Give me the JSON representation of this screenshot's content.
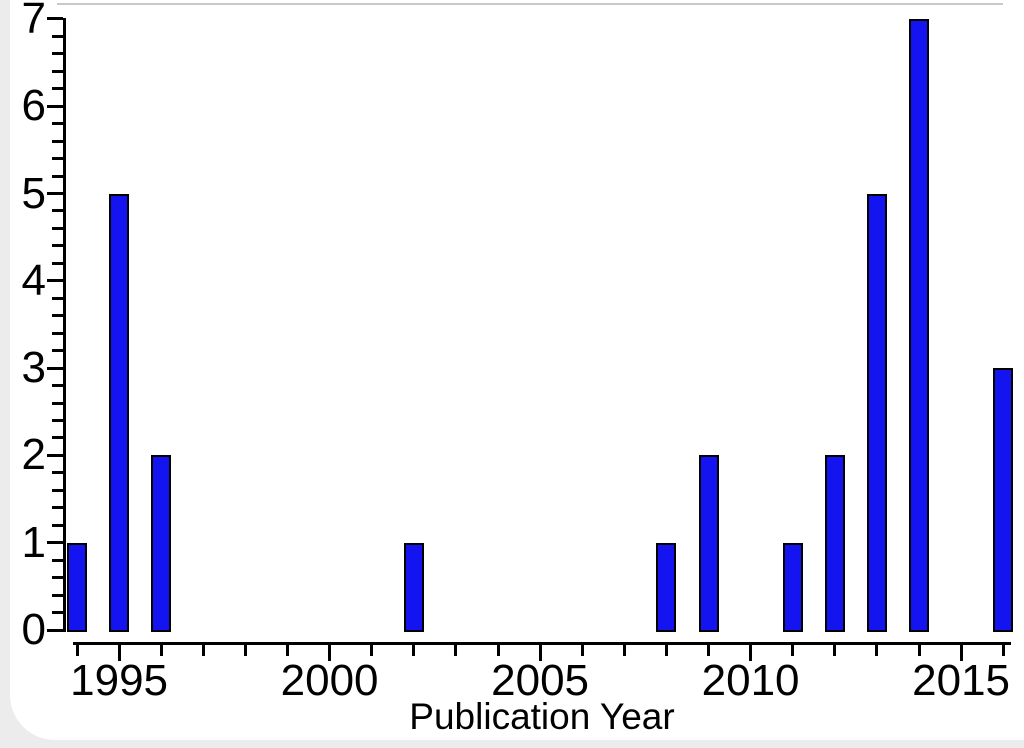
{
  "figure": {
    "background_color": "#ececec",
    "canvas_color": "#ffffff",
    "axis_color": "#000000",
    "text_color": "#000000",
    "top_artifact_line_color": "#c9c9c9"
  },
  "chart_data": {
    "type": "bar",
    "title": "",
    "xlabel": "Publication Year",
    "ylabel": "",
    "bar_fill_color": "#1414f0",
    "bar_border_color": "#000000",
    "legend": "none",
    "grid": "off",
    "x_axis": {
      "year_start": 1994,
      "year_end": 2016,
      "labeled_years": [
        1995,
        2000,
        2005,
        2010,
        2015
      ],
      "minor_tick_every_year": true
    },
    "y_axis": {
      "min": 0,
      "max": 7,
      "major_step": 1,
      "minor_step": 0.2,
      "tick_labels": [
        "0",
        "1",
        "2",
        "3",
        "4",
        "5",
        "6",
        "7"
      ]
    },
    "categories": [
      1994,
      1995,
      1996,
      2002,
      2008,
      2009,
      2011,
      2012,
      2013,
      2014,
      2016
    ],
    "values": [
      1,
      5,
      2,
      1,
      1,
      2,
      1,
      2,
      5,
      7,
      3
    ]
  }
}
